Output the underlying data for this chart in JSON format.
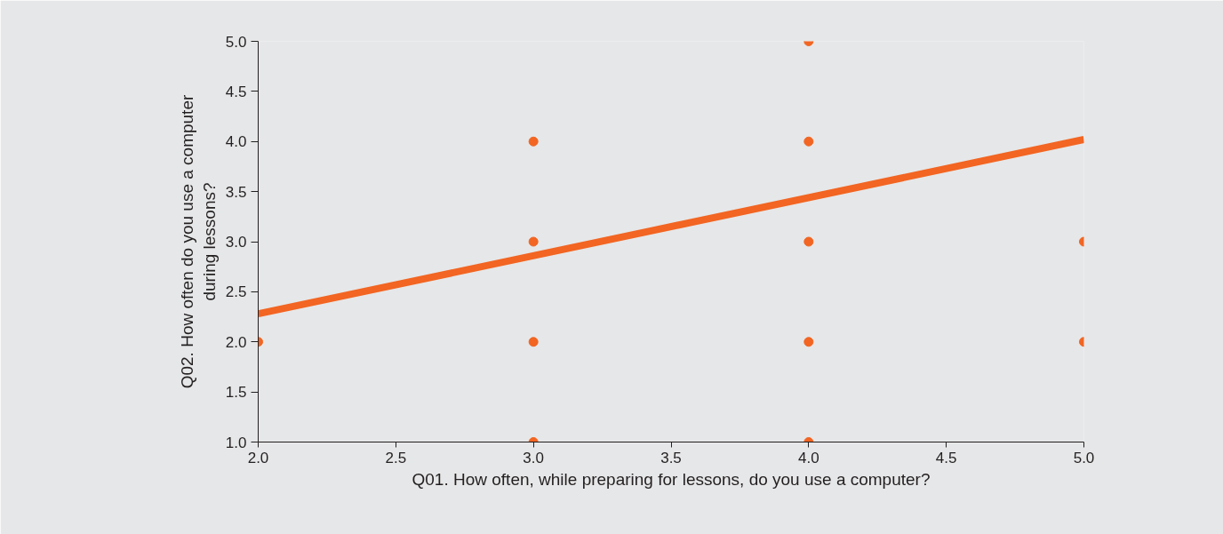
{
  "chart_data": {
    "type": "scatter",
    "xlabel": "Q01. How often, while preparing for lessons, do you use a computer?",
    "ylabel": "Q02. How often do you use a computer\nduring lessons?",
    "series": [
      {
        "color": "#f26522",
        "x": [
          2,
          3,
          3,
          3,
          3,
          4,
          4,
          4,
          4,
          4,
          5,
          5
        ],
        "values": [
          2,
          4,
          3,
          2,
          1,
          5,
          4,
          3,
          2,
          1,
          3,
          2
        ]
      },
      {
        "type": "line",
        "marker": "none",
        "color": "#f26522",
        "x": [
          2,
          5
        ],
        "values": [
          2.28,
          4.02
        ]
      }
    ],
    "xlim": [
      2.0,
      5.0
    ],
    "ylim": [
      1.0,
      5.0
    ],
    "xticks": [
      {
        "value": 2,
        "label": "2.0"
      },
      {
        "value": 2.5,
        "label": "2.5"
      },
      {
        "value": 3,
        "label": "3.0"
      },
      {
        "value": 3.5,
        "label": "3.5"
      },
      {
        "value": 4,
        "label": "4.0"
      },
      {
        "value": 4.5,
        "label": "4.5"
      },
      {
        "value": 5,
        "label": "5.0"
      }
    ],
    "yticks": [
      {
        "value": 1,
        "label": "1.0"
      },
      {
        "value": 1.5,
        "label": "1.5"
      },
      {
        "value": 2,
        "label": "2.0"
      },
      {
        "value": 2.5,
        "label": "2.5"
      },
      {
        "value": 3,
        "label": "3.0"
      },
      {
        "value": 3.5,
        "label": "3.5"
      },
      {
        "value": 4,
        "label": "4.0"
      },
      {
        "value": 4.5,
        "label": "4.5"
      },
      {
        "value": 5,
        "label": "5.0"
      }
    ],
    "marker": "circle",
    "line_style": "solid"
  }
}
